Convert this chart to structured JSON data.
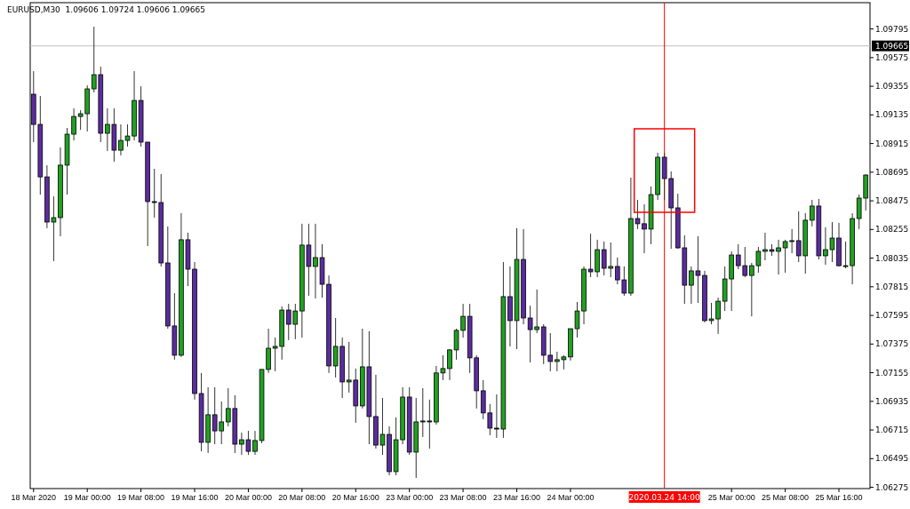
{
  "chart_data": {
    "type": "candlestick",
    "title": "EURUSD,M30  1.09606 1.09724 1.09606 1.09665",
    "categories": [
      "18 Mar 2020",
      null,
      null,
      null,
      null,
      null,
      null,
      null,
      "19 Mar 00:00",
      null,
      null,
      null,
      null,
      null,
      null,
      null,
      "19 Mar 08:00",
      null,
      null,
      null,
      null,
      null,
      null,
      null,
      "19 Mar 16:00",
      null,
      null,
      null,
      null,
      null,
      null,
      null,
      "20 Mar 00:00",
      null,
      null,
      null,
      null,
      null,
      null,
      null,
      "20 Mar 08:00",
      null,
      null,
      null,
      null,
      null,
      null,
      null,
      "20 Mar 16:00",
      null,
      null,
      null,
      null,
      null,
      null,
      null,
      "23 Mar 00:00",
      null,
      null,
      null,
      null,
      null,
      null,
      null,
      "23 Mar 08:00",
      null,
      null,
      null,
      null,
      null,
      null,
      null,
      "23 Mar 16:00",
      null,
      null,
      null,
      null,
      null,
      null,
      null,
      "24 Mar 00:00",
      null,
      null,
      null,
      null,
      null,
      null,
      null,
      null,
      null,
      null,
      null,
      null,
      null,
      "2020.03.24 14:00",
      null,
      null,
      null,
      null,
      null,
      null,
      null,
      null,
      null,
      "25 Mar 00:00",
      null,
      null,
      null,
      null,
      null,
      null,
      null,
      "25 Mar 08:00",
      null,
      null,
      null,
      null,
      null,
      null,
      null,
      "25 Mar 16:00",
      null,
      null,
      null,
      null
    ],
    "ohlc": [
      [
        1.09294,
        1.09471,
        1.08926,
        1.09062
      ],
      [
        1.09062,
        1.0928,
        1.08523,
        1.08659
      ],
      [
        1.08659,
        1.08749,
        1.08265,
        1.08312
      ],
      [
        1.08312,
        1.08509,
        1.08012,
        1.08346
      ],
      [
        1.08346,
        1.08885,
        1.08203,
        1.08749
      ],
      [
        1.08749,
        1.09035,
        1.08523,
        1.08987
      ],
      [
        1.08987,
        1.09185,
        1.08939,
        1.09123
      ],
      [
        1.09123,
        1.09171,
        1.09021,
        1.09144
      ],
      [
        1.09144,
        1.09362,
        1.09008,
        1.09335
      ],
      [
        1.09335,
        1.09812,
        1.09308,
        1.09444
      ],
      [
        1.09444,
        1.09505,
        1.08926,
        1.08994
      ],
      [
        1.08994,
        1.09185,
        1.08858,
        1.09062
      ],
      [
        1.09062,
        1.09185,
        1.08776,
        1.08864
      ],
      [
        1.08864,
        1.09062,
        1.08824,
        1.08939
      ],
      [
        1.08939,
        1.09062,
        1.08892,
        1.08973
      ],
      [
        1.08973,
        1.09471,
        1.08939,
        1.09246
      ],
      [
        1.09246,
        1.09355,
        1.08892,
        1.08926
      ],
      [
        1.08926,
        1.08926,
        1.08128,
        1.08469
      ],
      [
        1.08469,
        1.08721,
        1.08346,
        1.08462
      ],
      [
        1.08462,
        1.0868,
        1.07971,
        1.07998
      ],
      [
        1.07998,
        1.08279,
        1.07493,
        1.07514
      ],
      [
        1.07514,
        1.07766,
        1.07255,
        1.07289
      ],
      [
        1.07289,
        1.0838,
        1.07276,
        1.08176
      ],
      [
        1.08176,
        1.0823,
        1.0782,
        1.0795
      ],
      [
        1.0795,
        1.08005,
        1.06948,
        1.06995
      ],
      [
        1.06995,
        1.07153,
        1.06551,
        1.0662
      ],
      [
        1.0662,
        1.07043,
        1.06538,
        1.06832
      ],
      [
        1.06832,
        1.07043,
        1.06606,
        1.06708
      ],
      [
        1.06708,
        1.06934,
        1.06606,
        1.06777
      ],
      [
        1.06777,
        1.07036,
        1.06743,
        1.0688
      ],
      [
        1.0688,
        1.06982,
        1.06538,
        1.06606
      ],
      [
        1.06606,
        1.06695,
        1.06524,
        1.0664
      ],
      [
        1.0664,
        1.06708,
        1.06524,
        1.06551
      ],
      [
        1.06551,
        1.06708,
        1.06524,
        1.06634
      ],
      [
        1.06634,
        1.0718,
        1.06613,
        1.0718
      ],
      [
        1.0718,
        1.07493,
        1.07153,
        1.07343
      ],
      [
        1.07343,
        1.07425,
        1.07166,
        1.07357
      ],
      [
        1.07357,
        1.07664,
        1.07255,
        1.07636
      ],
      [
        1.07636,
        1.07684,
        1.07405,
        1.07527
      ],
      [
        1.07527,
        1.07684,
        1.07412,
        1.07629
      ],
      [
        1.07629,
        1.08299,
        1.07425,
        1.08135
      ],
      [
        1.08135,
        1.08299,
        1.07746,
        1.07971
      ],
      [
        1.07971,
        1.08299,
        1.07725,
        1.08039
      ],
      [
        1.08039,
        1.08142,
        1.07732,
        1.07834
      ],
      [
        1.07834,
        1.07902,
        1.07153,
        1.07207
      ],
      [
        1.07207,
        1.07575,
        1.07118,
        1.07357
      ],
      [
        1.07357,
        1.07425,
        1.06961,
        1.07084
      ],
      [
        1.07084,
        1.07391,
        1.07002,
        1.07098
      ],
      [
        1.07098,
        1.07187,
        1.0677,
        1.069
      ],
      [
        1.069,
        1.07493,
        1.0688,
        1.072
      ],
      [
        1.072,
        1.07473,
        1.06606,
        1.06818
      ],
      [
        1.06818,
        1.07139,
        1.06572,
        1.06599
      ],
      [
        1.06599,
        1.06961,
        1.06524,
        1.06681
      ],
      [
        1.06681,
        1.06743,
        1.06367,
        1.06395
      ],
      [
        1.06395,
        1.06811,
        1.06367,
        1.0664
      ],
      [
        1.0664,
        1.07043,
        1.06606,
        1.06968
      ],
      [
        1.06968,
        1.07043,
        1.06524,
        1.06545
      ],
      [
        1.06545,
        1.06961,
        1.06347,
        1.06777
      ],
      [
        1.06777,
        1.07036,
        1.06661,
        1.06784
      ],
      [
        1.06784,
        1.06948,
        1.06572,
        1.06777
      ],
      [
        1.06777,
        1.07207,
        1.06756,
        1.07153
      ],
      [
        1.07153,
        1.07289,
        1.07098,
        1.07187
      ],
      [
        1.07187,
        1.07336,
        1.07098,
        1.0733
      ],
      [
        1.0733,
        1.07493,
        1.07255,
        1.0748
      ],
      [
        1.0748,
        1.07684,
        1.07425,
        1.07588
      ],
      [
        1.07588,
        1.07684,
        1.07153,
        1.07269
      ],
      [
        1.07269,
        1.07289,
        1.0688,
        1.07016
      ],
      [
        1.07016,
        1.07098,
        1.06798,
        1.06846
      ],
      [
        1.06846,
        1.06914,
        1.06675,
        1.06729
      ],
      [
        1.06729,
        1.06988,
        1.06654,
        1.06722
      ],
      [
        1.06722,
        1.08005,
        1.06654,
        1.07739
      ],
      [
        1.07739,
        1.07971,
        1.07357,
        1.07555
      ],
      [
        1.07555,
        1.08265,
        1.07336,
        1.08025
      ],
      [
        1.08025,
        1.08258,
        1.07527,
        1.07575
      ],
      [
        1.07575,
        1.0767,
        1.07234,
        1.07486
      ],
      [
        1.07486,
        1.07794,
        1.07459,
        1.07507
      ],
      [
        1.07507,
        1.07527,
        1.07221,
        1.07289
      ],
      [
        1.07289,
        1.07459,
        1.07166,
        1.07241
      ],
      [
        1.07241,
        1.07316,
        1.07166,
        1.07255
      ],
      [
        1.07255,
        1.07289,
        1.0718,
        1.07276
      ],
      [
        1.07276,
        1.07493,
        1.07248,
        1.07493
      ],
      [
        1.07493,
        1.07698,
        1.07425,
        1.07629
      ],
      [
        1.07629,
        1.07971,
        1.07527,
        1.0795
      ],
      [
        1.0795,
        1.08223,
        1.07889,
        1.0793
      ],
      [
        1.0793,
        1.08176,
        1.07889,
        1.081
      ],
      [
        1.081,
        1.08162,
        1.07902,
        1.07957
      ],
      [
        1.07957,
        1.08155,
        1.07889,
        1.07971
      ],
      [
        1.07971,
        1.08039,
        1.07834,
        1.07868
      ],
      [
        1.07868,
        1.07971,
        1.07746,
        1.07766
      ],
      [
        1.07766,
        1.08653,
        1.07746,
        1.08339
      ],
      [
        1.08339,
        1.08482,
        1.08258,
        1.08299
      ],
      [
        1.08299,
        1.08448,
        1.08073,
        1.08258
      ],
      [
        1.08258,
        1.08585,
        1.08142,
        1.08523
      ],
      [
        1.08523,
        1.08844,
        1.08482,
        1.0881
      ],
      [
        1.0881,
        1.08844,
        1.08482,
        1.08646
      ],
      [
        1.08646,
        1.08701,
        1.08107,
        1.08421
      ],
      [
        1.08421,
        1.0853,
        1.08107,
        1.08114
      ],
      [
        1.08114,
        1.0821,
        1.07684,
        1.07827
      ],
      [
        1.07827,
        1.07971,
        1.07684,
        1.07937
      ],
      [
        1.07937,
        1.08203,
        1.07691,
        1.07902
      ],
      [
        1.07902,
        1.07937,
        1.07541,
        1.07555
      ],
      [
        1.07555,
        1.07691,
        1.07527,
        1.07568
      ],
      [
        1.07568,
        1.07732,
        1.07453,
        1.07704
      ],
      [
        1.07704,
        1.07971,
        1.07629,
        1.07875
      ],
      [
        1.07875,
        1.08087,
        1.07629,
        1.08059
      ],
      [
        1.08059,
        1.08142,
        1.0795,
        1.07977
      ],
      [
        1.07977,
        1.08121,
        1.07889,
        1.07902
      ],
      [
        1.07902,
        1.07998,
        1.07588,
        1.07977
      ],
      [
        1.07977,
        1.08121,
        1.07923,
        1.08087
      ],
      [
        1.08087,
        1.0823,
        1.08018,
        1.081
      ],
      [
        1.081,
        1.08142,
        1.08053,
        1.08087
      ],
      [
        1.08087,
        1.08176,
        1.07909,
        1.08114
      ],
      [
        1.08114,
        1.08176,
        1.07923,
        1.08162
      ],
      [
        1.08162,
        1.08258,
        1.08073,
        1.08169
      ],
      [
        1.08169,
        1.08394,
        1.08005,
        1.08053
      ],
      [
        1.08053,
        1.0838,
        1.07916,
        1.08326
      ],
      [
        1.08326,
        1.08482,
        1.08279,
        1.08435
      ],
      [
        1.08435,
        1.08489,
        1.08025,
        1.08053
      ],
      [
        1.08053,
        1.08272,
        1.07984,
        1.081
      ],
      [
        1.081,
        1.08312,
        1.08005,
        1.08189
      ],
      [
        1.08189,
        1.08306,
        1.07971,
        1.07977
      ],
      [
        1.07977,
        1.08162,
        1.07957,
        1.07977
      ],
      [
        1.07977,
        1.0838,
        1.07834,
        1.08339
      ],
      [
        1.08339,
        1.08523,
        1.08258,
        1.08496
      ],
      [
        1.08496,
        1.0868,
        1.08401,
        1.08673
      ]
    ],
    "colors": [
      "#5b2c9e",
      "#5b2c9e",
      "#5b2c9e",
      "#22a022",
      "#22a022",
      "#22a022",
      "#22a022",
      "#22a022",
      "#22a022",
      "#22a022",
      "#5b2c9e",
      "#22a022",
      "#5b2c9e",
      "#22a022",
      "#22a022",
      "#22a022",
      "#5b2c9e",
      "#5b2c9e",
      "#5b2c9e",
      "#5b2c9e",
      "#5b2c9e",
      "#5b2c9e",
      "#22a022",
      "#5b2c9e",
      "#5b2c9e",
      "#5b2c9e",
      "#22a022",
      "#5b2c9e",
      "#22a022",
      "#22a022",
      "#5b2c9e",
      "#22a022",
      "#5b2c9e",
      "#22a022",
      "#22a022",
      "#22a022",
      "#22a022",
      "#22a022",
      "#5b2c9e",
      "#22a022",
      "#22a022",
      "#5b2c9e",
      "#22a022",
      "#5b2c9e",
      "#5b2c9e",
      "#22a022",
      "#5b2c9e",
      "#22a022",
      "#5b2c9e",
      "#22a022",
      "#5b2c9e",
      "#5b2c9e",
      "#22a022",
      "#5b2c9e",
      "#22a022",
      "#22a022",
      "#5b2c9e",
      "#22a022",
      "#22a022",
      "#5b2c9e",
      "#22a022",
      "#22a022",
      "#22a022",
      "#22a022",
      "#22a022",
      "#5b2c9e",
      "#5b2c9e",
      "#5b2c9e",
      "#5b2c9e",
      "#5b2c9e",
      "#22a022",
      "#5b2c9e",
      "#22a022",
      "#5b2c9e",
      "#5b2c9e",
      "#22a022",
      "#5b2c9e",
      "#5b2c9e",
      "#22a022",
      "#22a022",
      "#22a022",
      "#22a022",
      "#22a022",
      "#5b2c9e",
      "#22a022",
      "#5b2c9e",
      "#22a022",
      "#5b2c9e",
      "#5b2c9e",
      "#22a022",
      "#5b2c9e",
      "#5b2c9e",
      "#22a022",
      "#22a022",
      "#5b2c9e",
      "#5b2c9e",
      "#5b2c9e",
      "#5b2c9e",
      "#22a022",
      "#5b2c9e",
      "#5b2c9e",
      "#22a022",
      "#22a022",
      "#22a022",
      "#22a022",
      "#5b2c9e",
      "#5b2c9e",
      "#22a022",
      "#22a022",
      "#22a022",
      "#5b2c9e",
      "#22a022",
      "#22a022",
      "#22a022",
      "#5b2c9e",
      "#22a022",
      "#22a022",
      "#5b2c9e",
      "#22a022",
      "#22a022",
      "#5b2c9e",
      "#22a022",
      "#22a022",
      "#22a022",
      "#22a022"
    ],
    "ylim": [
      1.06265,
      1.09997
    ],
    "yticks": [
      1.06275,
      1.06495,
      1.06715,
      1.06935,
      1.07155,
      1.07375,
      1.07595,
      1.07815,
      1.08035,
      1.08255,
      1.08475,
      1.08695,
      1.08915,
      1.09135,
      1.09355,
      1.09575,
      1.09795
    ],
    "ref_lines": [
      {
        "axis": "y",
        "value": 1.09665,
        "label": "1.09665",
        "color": "#c0c0c0"
      },
      {
        "axis": "x",
        "value": "2020.03.24 14:00",
        "color": "#ff0000"
      }
    ],
    "grid": false
  }
}
